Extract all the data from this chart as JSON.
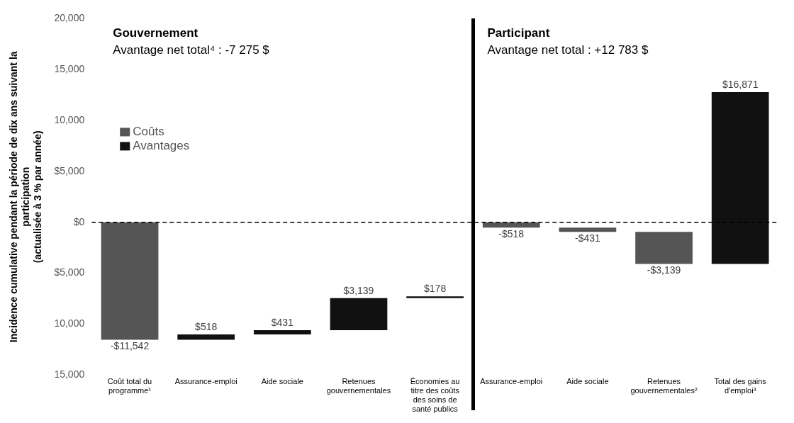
{
  "chart_data": {
    "type": "bar",
    "ylabel": "Incidence cumulative pendant la période de dix ans suivant la\nparticipation\n(actualisée à 3 % par année)",
    "categories": [
      "Coût total du programme¹",
      "Assurance-emploi",
      "Aide sociale",
      "Retenues gouvernementales",
      "Économies au titre des coûts des soins de santé publics",
      "Assurance-emploi",
      "Aide sociale",
      "Retenues gouvernementales²",
      "Total des gains d'emploi³"
    ],
    "series": [
      {
        "name": "Coûts",
        "color": "#555555",
        "values": [
          -11542,
          null,
          null,
          null,
          null,
          -518,
          -431,
          -3139,
          null
        ],
        "base": [
          0,
          null,
          null,
          null,
          null,
          0,
          -518,
          -949,
          null
        ],
        "value_labels": [
          "-$11,542",
          null,
          null,
          null,
          null,
          "-$518",
          "-$431",
          "-$3,139",
          null
        ]
      },
      {
        "name": "Avantages",
        "color": "#111111",
        "values": [
          null,
          518,
          431,
          3139,
          178,
          null,
          null,
          null,
          16871
        ],
        "base": [
          null,
          -11542,
          -11024,
          -10593,
          -7454,
          null,
          null,
          null,
          -4088
        ],
        "value_labels": [
          null,
          "$518",
          "$431",
          "$3,139",
          "$178",
          null,
          null,
          null,
          "$16,871"
        ]
      }
    ],
    "ylim": [
      -15000,
      20000
    ],
    "yticks": [
      {
        "value": 20000,
        "label": "20,000"
      },
      {
        "value": 15000,
        "label": "15,000"
      },
      {
        "value": 10000,
        "label": "10,000"
      },
      {
        "value": 5000,
        "label": "$5,000"
      },
      {
        "value": 0,
        "label": "$0"
      },
      {
        "value": -5000,
        "label": "$5,000"
      },
      {
        "value": -10000,
        "label": "10,000"
      },
      {
        "value": -15000,
        "label": "15,000"
      }
    ],
    "ref_lines": [
      {
        "axis": "y",
        "value": 0,
        "color": "#000000",
        "line_style": "dashed"
      }
    ],
    "annotations": [
      "Gouvernement",
      "Avantage net total⁴ : -7 275 $",
      "Participant",
      "Avantage net total : +12 783 $"
    ],
    "grid": false,
    "legend": "top left"
  }
}
